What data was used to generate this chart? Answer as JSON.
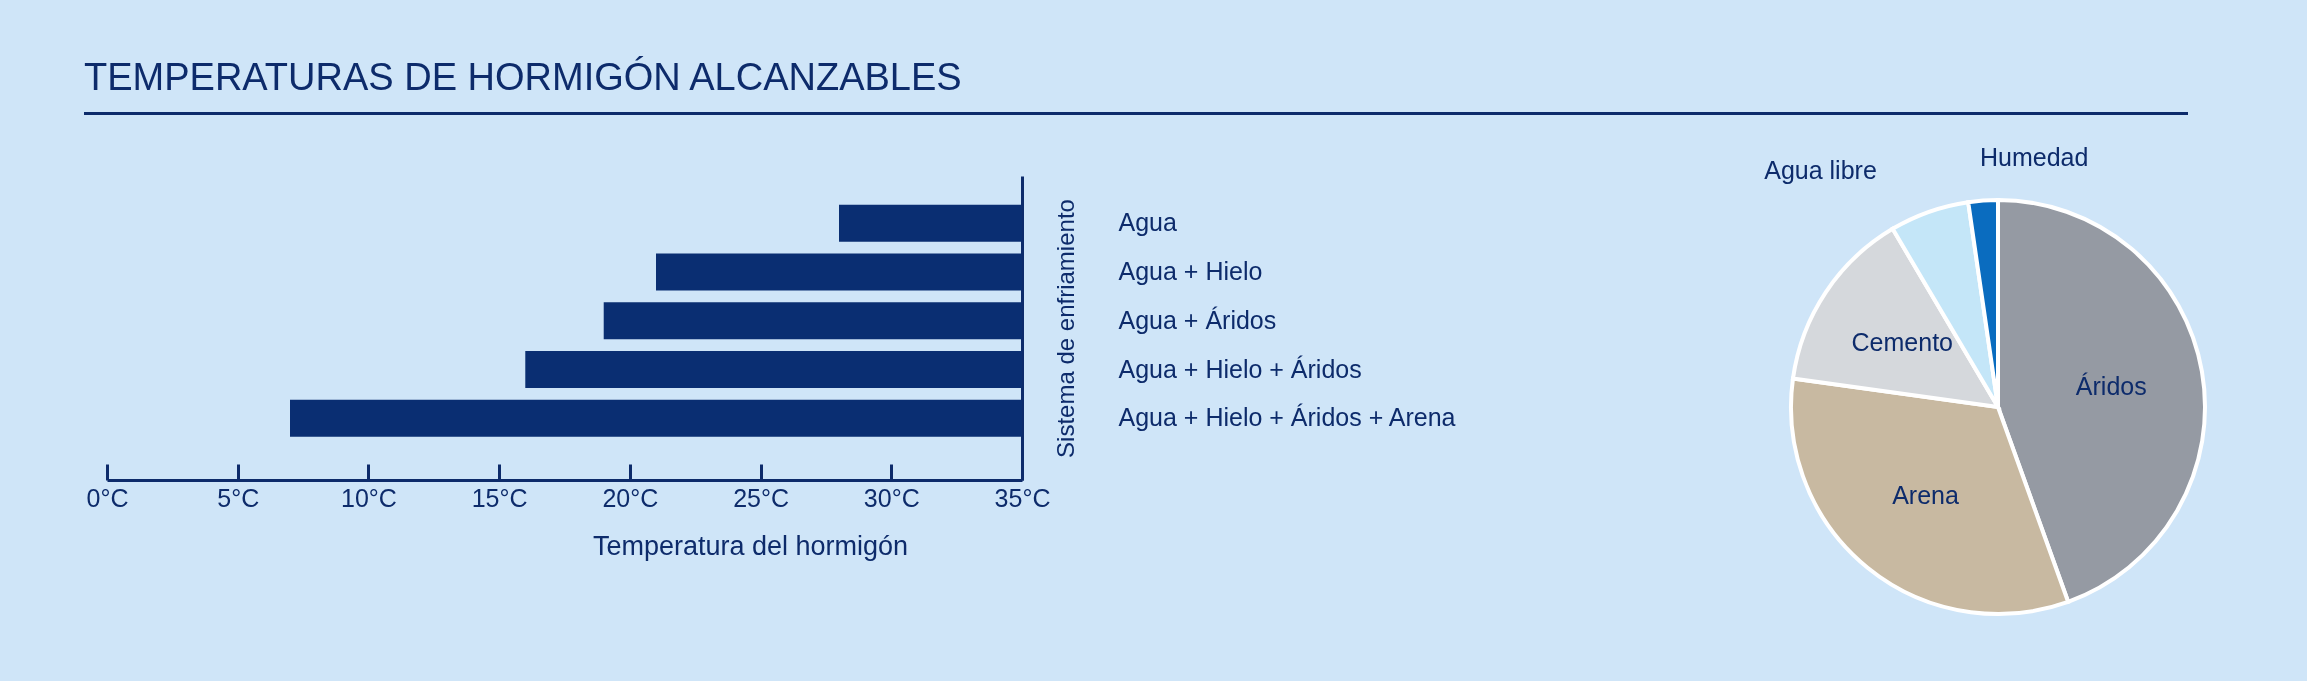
{
  "chart_data": [
    {
      "type": "bar",
      "title": "TEMPERATURAS DE HORMIGÓN ALCANZABLES",
      "xlabel": "Temperatura del hormigón",
      "ylabel": "Sistema de enfriamiento",
      "orientation": "horizontal",
      "categories": [
        "Agua",
        "Agua + Hielo",
        "Agua + Áridos",
        "Agua + Hielo + Áridos",
        "Agua + Hielo + Áridos + Arena"
      ],
      "base": [
        28,
        21,
        19,
        16,
        7
      ],
      "values": [
        7,
        14,
        16,
        19,
        28
      ],
      "color": "#0a2e72",
      "xlim": [
        0,
        35
      ],
      "xticks": [
        {
          "value": 0,
          "label": "0°C"
        },
        {
          "value": 5,
          "label": "5°C"
        },
        {
          "value": 10,
          "label": "10°C"
        },
        {
          "value": 15,
          "label": "15°C"
        },
        {
          "value": 20,
          "label": "20°C"
        },
        {
          "value": 25,
          "label": "25°C"
        },
        {
          "value": 30,
          "label": "30°C"
        },
        {
          "value": 35,
          "label": "35°C"
        }
      ]
    },
    {
      "type": "pie",
      "categories": [
        "Áridos",
        "Arena",
        "Cemento",
        "Agua libre",
        "Humedad"
      ],
      "values": [
        44.5,
        32.7,
        14.3,
        6.2,
        2.3
      ],
      "colors": [
        "#959aa3",
        "#c8b9a1",
        "#d5d8dc",
        "#c4e6f8",
        "#0a6cbf"
      ]
    }
  ]
}
